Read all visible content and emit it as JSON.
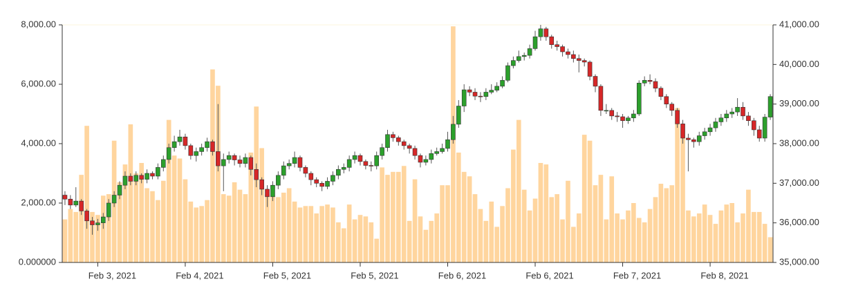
{
  "chart_data": {
    "type": "candlestick",
    "categories": [
      null,
      null,
      null,
      null,
      null,
      null,
      "Feb 3, 2021",
      null,
      null,
      null,
      null,
      null,
      null,
      null,
      null,
      null,
      null,
      null,
      null,
      null,
      null,
      null,
      "Feb 4, 2021",
      null,
      null,
      null,
      null,
      null,
      null,
      null,
      null,
      null,
      null,
      null,
      null,
      null,
      null,
      null,
      "Feb 5, 2021",
      null,
      null,
      null,
      null,
      null,
      null,
      null,
      null,
      null,
      null,
      null,
      null,
      null,
      null,
      null,
      "Feb 5, 2021",
      null,
      null,
      null,
      null,
      null,
      null,
      null,
      null,
      null,
      null,
      null,
      null,
      null,
      null,
      null,
      "Feb 6, 2021",
      null,
      null,
      null,
      null,
      null,
      null,
      null,
      null,
      null,
      null,
      null,
      null,
      null,
      null,
      null,
      "Feb 6, 2021",
      null,
      null,
      null,
      null,
      null,
      null,
      null,
      null,
      null,
      null,
      null,
      null,
      null,
      null,
      null,
      "Feb 7, 2021",
      null,
      null,
      null,
      null,
      null,
      null,
      null,
      null,
      null,
      null,
      null,
      null,
      null,
      null,
      null,
      "Feb 8, 2021",
      null,
      null,
      null,
      null,
      null,
      null,
      null,
      null,
      null,
      null,
      null
    ],
    "ohlc": [
      [
        36700,
        36800,
        36450,
        36600
      ],
      [
        36600,
        36700,
        36350,
        36450
      ],
      [
        36450,
        36900,
        36400,
        36550
      ],
      [
        36550,
        36600,
        36200,
        36300
      ],
      [
        36300,
        36350,
        35850,
        36050
      ],
      [
        36050,
        36150,
        35700,
        35950
      ],
      [
        35950,
        36100,
        35800,
        36000
      ],
      [
        36000,
        36250,
        35850,
        36150
      ],
      [
        36150,
        36600,
        36050,
        36500
      ],
      [
        36500,
        36800,
        36400,
        36700
      ],
      [
        36700,
        37050,
        36600,
        36950
      ],
      [
        36950,
        37300,
        36850,
        37180
      ],
      [
        37180,
        37250,
        36950,
        37050
      ],
      [
        37050,
        37300,
        36950,
        37200
      ],
      [
        37200,
        37250,
        37000,
        37100
      ],
      [
        37100,
        37350,
        37000,
        37250
      ],
      [
        37250,
        37300,
        37100,
        37180
      ],
      [
        37180,
        37500,
        37100,
        37400
      ],
      [
        37400,
        37700,
        37300,
        37600
      ],
      [
        37600,
        38000,
        37500,
        37900
      ],
      [
        37900,
        38200,
        37800,
        38050
      ],
      [
        38050,
        38350,
        37950,
        38170
      ],
      [
        38170,
        38250,
        37850,
        37950
      ],
      [
        37950,
        38000,
        37600,
        37700
      ],
      [
        37700,
        37900,
        37550,
        37800
      ],
      [
        37800,
        38000,
        37700,
        37900
      ],
      [
        37900,
        38150,
        37800,
        38050
      ],
      [
        38050,
        38100,
        37700,
        37800
      ],
      [
        37800,
        39000,
        37300,
        37440
      ],
      [
        37440,
        37750,
        36800,
        37600
      ],
      [
        37600,
        37800,
        37500,
        37700
      ],
      [
        37700,
        37750,
        37450,
        37590
      ],
      [
        37590,
        37700,
        37400,
        37500
      ],
      [
        37500,
        37750,
        37400,
        37650
      ],
      [
        37650,
        37700,
        37200,
        37350
      ],
      [
        37350,
        37500,
        36900,
        37090
      ],
      [
        37090,
        37150,
        36700,
        36850
      ],
      [
        36850,
        36950,
        36400,
        36660
      ],
      [
        36660,
        37050,
        36550,
        36950
      ],
      [
        36950,
        37300,
        36850,
        37200
      ],
      [
        37200,
        37550,
        37100,
        37440
      ],
      [
        37440,
        37600,
        37350,
        37500
      ],
      [
        37500,
        37800,
        37400,
        37650
      ],
      [
        37650,
        37700,
        37300,
        37400
      ],
      [
        37400,
        37450,
        37150,
        37250
      ],
      [
        37250,
        37300,
        36950,
        37090
      ],
      [
        37090,
        37150,
        36900,
        37000
      ],
      [
        37000,
        37050,
        36800,
        36920
      ],
      [
        36920,
        37150,
        36850,
        37050
      ],
      [
        37050,
        37300,
        36950,
        37200
      ],
      [
        37200,
        37450,
        37100,
        37350
      ],
      [
        37350,
        37500,
        37250,
        37400
      ],
      [
        37400,
        37700,
        37300,
        37600
      ],
      [
        37600,
        37800,
        37500,
        37700
      ],
      [
        37700,
        37750,
        37450,
        37550
      ],
      [
        37550,
        37600,
        37350,
        37450
      ],
      [
        37450,
        37550,
        37300,
        37440
      ],
      [
        37440,
        37800,
        37350,
        37700
      ],
      [
        37700,
        38000,
        37600,
        37900
      ],
      [
        37900,
        38350,
        37800,
        38230
      ],
      [
        38230,
        38300,
        38050,
        38150
      ],
      [
        38150,
        38200,
        37950,
        38050
      ],
      [
        38050,
        38100,
        37850,
        37950
      ],
      [
        37950,
        38000,
        37750,
        37880
      ],
      [
        37880,
        37950,
        37600,
        37700
      ],
      [
        37700,
        37750,
        37400,
        37530
      ],
      [
        37530,
        37700,
        37450,
        37600
      ],
      [
        37600,
        37850,
        37500,
        37750
      ],
      [
        37750,
        37900,
        37700,
        37800
      ],
      [
        37800,
        38000,
        37750,
        37880
      ],
      [
        37880,
        38300,
        37800,
        38100
      ],
      [
        38100,
        38700,
        38000,
        38490
      ],
      [
        38490,
        39100,
        38400,
        38950
      ],
      [
        38950,
        39500,
        38800,
        39360
      ],
      [
        39360,
        39450,
        39200,
        39300
      ],
      [
        39300,
        39400,
        39100,
        39200
      ],
      [
        39200,
        39300,
        39050,
        39190
      ],
      [
        39190,
        39400,
        39100,
        39300
      ],
      [
        39300,
        39500,
        39250,
        39350
      ],
      [
        39350,
        39550,
        39300,
        39450
      ],
      [
        39450,
        39700,
        39400,
        39600
      ],
      [
        39600,
        40050,
        39550,
        39970
      ],
      [
        39970,
        40200,
        39900,
        40100
      ],
      [
        40100,
        40350,
        40050,
        40200
      ],
      [
        40200,
        40300,
        40100,
        40230
      ],
      [
        40230,
        40500,
        40150,
        40400
      ],
      [
        40400,
        40850,
        40350,
        40700
      ],
      [
        40700,
        41000,
        40600,
        40900
      ],
      [
        40900,
        40950,
        40600,
        40700
      ],
      [
        40700,
        40750,
        40400,
        40500
      ],
      [
        40500,
        40600,
        40350,
        40450
      ],
      [
        40450,
        40500,
        40200,
        40320
      ],
      [
        40320,
        40400,
        40150,
        40250
      ],
      [
        40250,
        40350,
        40050,
        40150
      ],
      [
        40150,
        40250,
        39800,
        40100
      ],
      [
        40100,
        40150,
        39950,
        40060
      ],
      [
        40060,
        40100,
        39600,
        39700
      ],
      [
        39700,
        39750,
        39300,
        39450
      ],
      [
        39450,
        39500,
        38700,
        38840
      ],
      [
        38840,
        39000,
        38750,
        38840
      ],
      [
        38840,
        38900,
        38600,
        38700
      ],
      [
        38700,
        38800,
        38550,
        38680
      ],
      [
        38680,
        38750,
        38400,
        38580
      ],
      [
        38580,
        38700,
        38500,
        38650
      ],
      [
        38650,
        38850,
        38550,
        38750
      ],
      [
        38750,
        39600,
        38700,
        39530
      ],
      [
        39530,
        39700,
        39450,
        39600
      ],
      [
        39600,
        39750,
        39500,
        39570
      ],
      [
        39570,
        39650,
        39300,
        39400
      ],
      [
        39400,
        39450,
        39100,
        39190
      ],
      [
        39190,
        39250,
        38900,
        39000
      ],
      [
        39000,
        39050,
        38700,
        38840
      ],
      [
        38840,
        38900,
        38400,
        38500
      ],
      [
        38500,
        38600,
        38000,
        38140
      ],
      [
        38140,
        38250,
        37300,
        38100
      ],
      [
        38100,
        38150,
        37900,
        38050
      ],
      [
        38050,
        38300,
        37950,
        38200
      ],
      [
        38200,
        38400,
        38100,
        38300
      ],
      [
        38300,
        38500,
        38200,
        38400
      ],
      [
        38400,
        38650,
        38300,
        38550
      ],
      [
        38550,
        38750,
        38450,
        38650
      ],
      [
        38650,
        38850,
        38550,
        38750
      ],
      [
        38750,
        38900,
        38650,
        38800
      ],
      [
        38800,
        39150,
        38700,
        38920
      ],
      [
        38920,
        39050,
        38600,
        38700
      ],
      [
        38700,
        38800,
        38450,
        38580
      ],
      [
        38580,
        38650,
        38200,
        38350
      ],
      [
        38350,
        38450,
        38050,
        38140
      ],
      [
        38140,
        38750,
        38050,
        38670
      ],
      [
        38670,
        39250,
        38600,
        39190
      ]
    ],
    "volume": [
      1450,
      1800,
      1700,
      2950,
      4600,
      1700,
      1600,
      2250,
      2300,
      4100,
      2700,
      3300,
      4650,
      3000,
      3350,
      2500,
      2400,
      2100,
      2750,
      4800,
      3600,
      3500,
      2800,
      2050,
      1850,
      1900,
      2100,
      6500,
      5950,
      2300,
      2250,
      2700,
      2450,
      2300,
      3700,
      5250,
      3850,
      2300,
      2250,
      2200,
      2350,
      2500,
      2050,
      1850,
      1900,
      1900,
      1650,
      1900,
      1950,
      1850,
      1350,
      1150,
      1950,
      1450,
      1600,
      1550,
      1350,
      800,
      3200,
      2950,
      3050,
      3050,
      3250,
      1400,
      2800,
      1550,
      1100,
      1400,
      1650,
      2600,
      2600,
      7950,
      3700,
      3050,
      2900,
      2300,
      1800,
      1400,
      2050,
      1200,
      1900,
      2500,
      3800,
      4800,
      2450,
      1750,
      2150,
      3350,
      3300,
      2200,
      2300,
      1450,
      2750,
      1200,
      1650,
      4300,
      4100,
      2600,
      2950,
      1450,
      2900,
      1650,
      1450,
      1750,
      2000,
      1500,
      1350,
      1800,
      2200,
      2650,
      2500,
      2600,
      5200,
      4450,
      1750,
      1550,
      1650,
      1950,
      1600,
      1300,
      1750,
      1950,
      2000,
      1350,
      1650,
      2450,
      1700,
      1700,
      1300,
      850
    ],
    "up_color": "#2ca02c",
    "down_color": "#d62728",
    "volume_color": "#ffd59e",
    "ylim": [
      0,
      8000
    ],
    "yticks": [
      {
        "value": 0,
        "label": "0.000000"
      },
      {
        "value": 2000,
        "label": "2,000.00"
      },
      {
        "value": 4000,
        "label": "4,000.00"
      },
      {
        "value": 6000,
        "label": "6,000.00"
      },
      {
        "value": 8000,
        "label": "8,000.00"
      }
    ],
    "y2lim": [
      35000,
      41000
    ],
    "y2ticks": [
      {
        "value": 35000,
        "label": "35,000.00"
      },
      {
        "value": 36000,
        "label": "36,000.00"
      },
      {
        "value": 37000,
        "label": "37,000.00"
      },
      {
        "value": 38000,
        "label": "38,000.00"
      },
      {
        "value": 39000,
        "label": "39,000.00"
      },
      {
        "value": 40000,
        "label": "40,000.00"
      },
      {
        "value": 41000,
        "label": "41,000.00"
      }
    ]
  }
}
